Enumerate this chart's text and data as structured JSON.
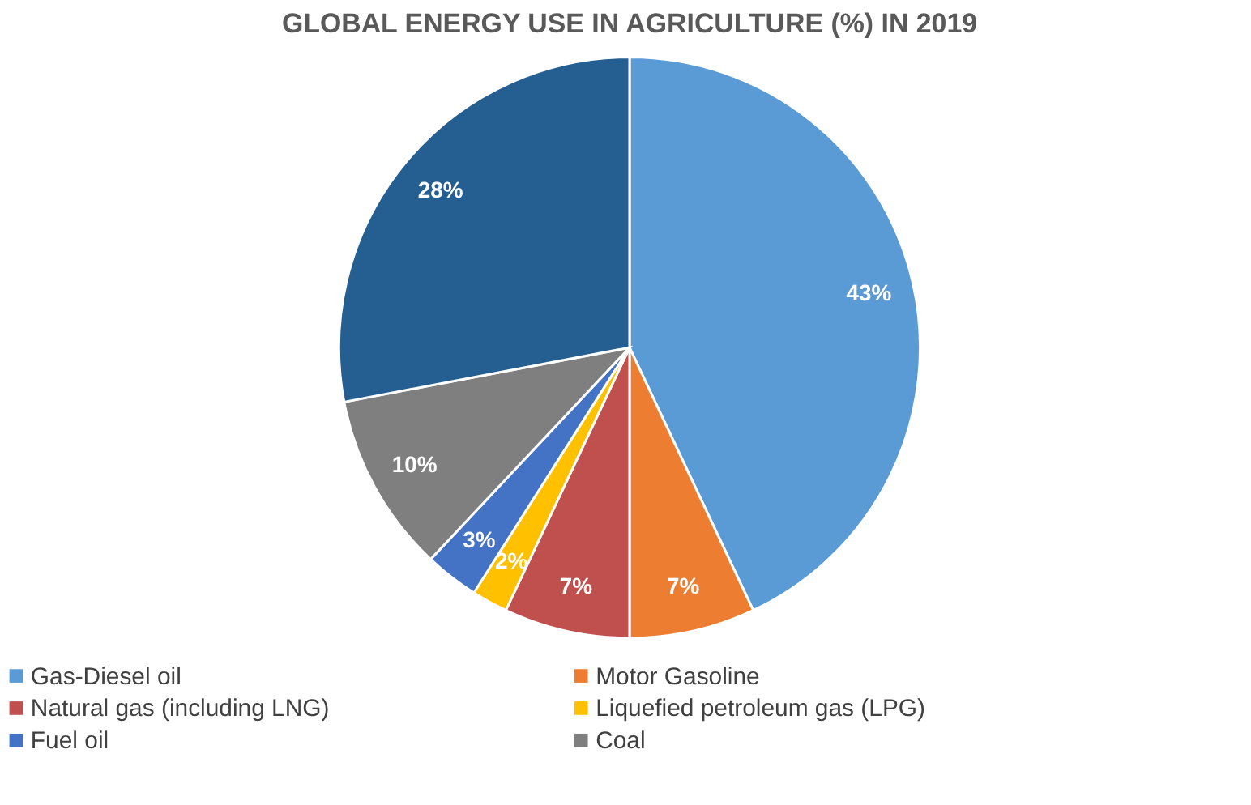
{
  "chart_data": {
    "type": "pie",
    "title": "GLOBAL ENERGY USE IN AGRICULTURE (%) IN 2019",
    "categories": [
      "Gas-Diesel oil",
      "Motor Gasoline",
      "Natural gas (including LNG)",
      "Liquefied petroleum gas (LPG)",
      "Fuel oil",
      "Coal",
      null
    ],
    "values": [
      43,
      7,
      7,
      2,
      3,
      10,
      28
    ],
    "value_labels": [
      "43%",
      "7%",
      "7%",
      "2%",
      "3%",
      "10%",
      "28%"
    ],
    "colors": [
      "#5b9bd5",
      "#ed7d31",
      "#c0504d",
      "#ffc000",
      "#4472c4",
      "#7f7f7f",
      "#255e91"
    ],
    "legend": "bottom"
  }
}
